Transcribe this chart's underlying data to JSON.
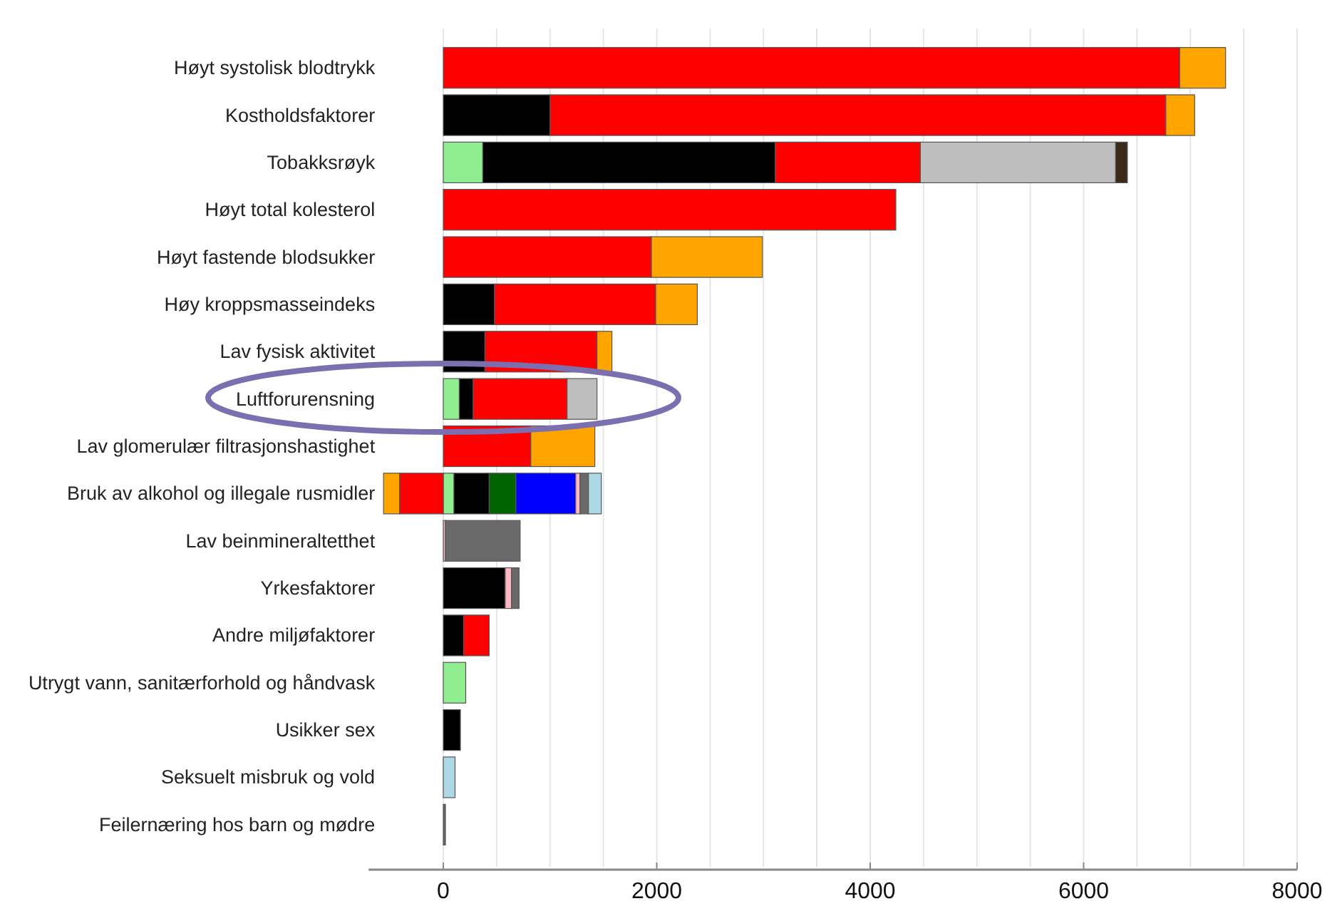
{
  "chart_data": {
    "type": "bar",
    "orientation": "horizontal",
    "stacked": true,
    "grid": "x",
    "categories": [
      "Høyt systolisk blodtrykk",
      "Kostholdsfaktorer",
      "Tobakksrøyk",
      "Høyt total kolesterol",
      "Høyt fastende blodsukker",
      "Høy kroppsmasseindeks",
      "Lav fysisk aktivitet",
      "Luftforurensning",
      "Lav glomerulær filtrasjonshastighet",
      "Bruk av alkohol og illegale rusmidler",
      "Lav beinmineraltetthet",
      "Yrkesfaktorer",
      "Andre miljøfaktorer",
      "Utrygt vann, sanitærforhold og håndvask",
      "Usikker sex",
      "Seksuelt misbruk og vold",
      "Feilernæring hos barn og mødre"
    ],
    "xlim": [
      -700,
      8000
    ],
    "xticks": [
      0,
      {
        "value": 500,
        "label": null
      },
      {
        "value": 1000,
        "label": null
      },
      {
        "value": 1500,
        "label": null
      },
      2000,
      {
        "value": 2500,
        "label": null
      },
      {
        "value": 3000,
        "label": null
      },
      {
        "value": 3500,
        "label": null
      },
      4000,
      {
        "value": 4500,
        "label": null
      },
      {
        "value": 5000,
        "label": null
      },
      {
        "value": 5500,
        "label": null
      },
      6000,
      {
        "value": 6500,
        "label": null
      },
      {
        "value": 7000,
        "label": null
      },
      {
        "value": 7500,
        "label": null
      },
      8000
    ],
    "series": [
      {
        "color": "#90ee90",
        "values": [
          null,
          null,
          370,
          null,
          null,
          null,
          null,
          150,
          null,
          100,
          null,
          null,
          null,
          210,
          null,
          null,
          null
        ]
      },
      {
        "color": "#000000",
        "values": [
          null,
          1000,
          2740,
          null,
          null,
          480,
          390,
          130,
          null,
          330,
          null,
          580,
          190,
          null,
          160,
          null,
          null
        ]
      },
      {
        "color": "#ff0000",
        "values": [
          6900,
          5770,
          1360,
          4240,
          1950,
          1510,
          1050,
          880,
          820,
          -410,
          null,
          null,
          240,
          null,
          null,
          null,
          null
        ]
      },
      {
        "color": "#ffa500",
        "values": [
          430,
          270,
          null,
          null,
          1040,
          390,
          140,
          null,
          600,
          -150,
          null,
          null,
          null,
          null,
          null,
          null,
          null
        ]
      },
      {
        "color": "#bebebe",
        "values": [
          null,
          null,
          1830,
          null,
          null,
          null,
          null,
          280,
          null,
          null,
          null,
          null,
          null,
          null,
          null,
          null,
          null
        ]
      },
      {
        "color": "#3a2a1a",
        "values": [
          null,
          null,
          110,
          null,
          null,
          null,
          null,
          null,
          null,
          null,
          null,
          null,
          null,
          null,
          null,
          null,
          null
        ]
      },
      {
        "color": "#006400",
        "values": [
          null,
          null,
          null,
          null,
          null,
          null,
          null,
          null,
          null,
          250,
          null,
          null,
          null,
          null,
          null,
          null,
          null
        ]
      },
      {
        "color": "#0000ff",
        "values": [
          null,
          null,
          null,
          null,
          null,
          null,
          null,
          null,
          null,
          560,
          null,
          null,
          null,
          null,
          null,
          null,
          null
        ]
      },
      {
        "color": "#ffb6c1",
        "values": [
          null,
          null,
          null,
          null,
          null,
          null,
          null,
          null,
          null,
          40,
          20,
          60,
          null,
          null,
          null,
          null,
          null
        ]
      },
      {
        "color": "#696969",
        "values": [
          null,
          null,
          null,
          null,
          null,
          null,
          null,
          null,
          null,
          80,
          700,
          70,
          null,
          null,
          null,
          null,
          20
        ]
      },
      {
        "color": "#add8e6",
        "values": [
          null,
          null,
          null,
          null,
          null,
          null,
          null,
          null,
          null,
          120,
          null,
          null,
          null,
          null,
          null,
          110,
          null
        ]
      }
    ]
  }
}
